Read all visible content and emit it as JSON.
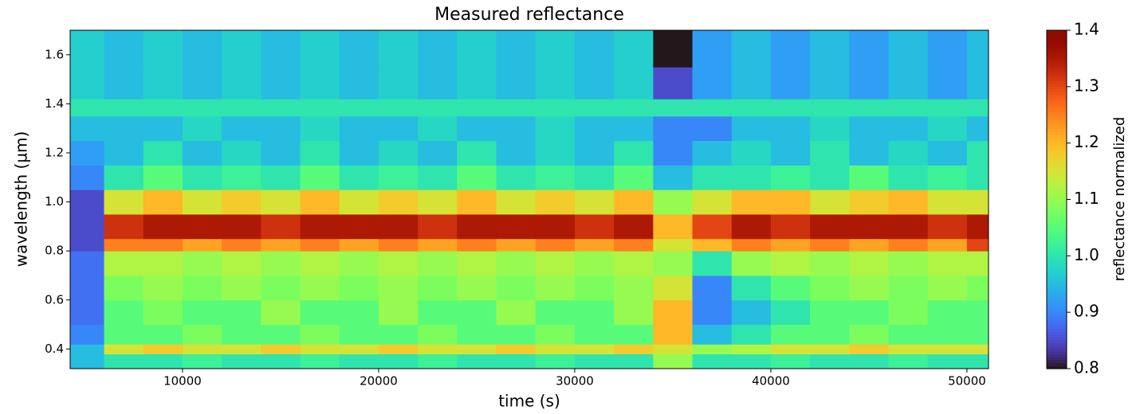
{
  "chart_data": {
    "type": "heatmap",
    "title": "Measured reflectance",
    "x_label": "time (s)",
    "y_label": "wavelength (µm)",
    "colorbar_label": "reflectance normalized",
    "colormap": "turbo",
    "xlim": [
      4270,
      51100
    ],
    "ylim": [
      0.32,
      1.7
    ],
    "xticks": [
      10000,
      20000,
      30000,
      40000,
      50000
    ],
    "yticks": [
      0.4,
      0.6,
      0.8,
      {
        "value": 1,
        "label": "1.0"
      },
      1.2,
      1.4,
      1.6
    ],
    "clim": [
      0.8,
      1.4
    ],
    "cticks": [
      0.8,
      0.9,
      {
        "value": 1,
        "label": "1.0"
      },
      1.1,
      1.2,
      1.3,
      1.4
    ],
    "x_bins": [
      4270,
      6000,
      8000,
      10000,
      12000,
      14000,
      16000,
      18000,
      20000,
      22000,
      24000,
      26000,
      28000,
      30000,
      32000,
      34000,
      36000,
      38000,
      40000,
      42000,
      44000,
      46000,
      48000,
      50000,
      51100
    ],
    "y_bins": [
      0.32,
      0.38,
      0.42,
      0.5,
      0.6,
      0.7,
      0.8,
      0.85,
      0.95,
      1.05,
      1.15,
      1.25,
      1.35,
      1.42,
      1.55,
      1.7
    ],
    "values": [
      [
        0.95,
        1.0,
        1.0,
        1.02,
        1.0,
        1.0,
        1.02,
        1.0,
        1.0,
        1.02,
        1.0,
        1.0,
        1.02,
        1.0,
        1.0,
        1.1,
        1.0,
        1.0,
        1.02,
        1.0,
        1.0,
        1.02,
        1.0,
        1.0
      ],
      [
        0.95,
        1.15,
        1.18,
        1.15,
        1.15,
        1.18,
        1.15,
        1.15,
        1.18,
        1.15,
        1.15,
        1.18,
        1.15,
        1.15,
        1.18,
        1.15,
        1.1,
        1.12,
        1.15,
        1.15,
        1.18,
        1.15,
        1.15,
        1.15
      ],
      [
        0.9,
        1.05,
        1.05,
        1.08,
        1.05,
        1.05,
        1.08,
        1.05,
        1.05,
        1.08,
        1.05,
        1.05,
        1.08,
        1.05,
        1.05,
        1.2,
        0.95,
        1.0,
        1.05,
        1.05,
        1.08,
        1.05,
        1.05,
        1.05
      ],
      [
        0.88,
        1.05,
        1.08,
        1.05,
        1.05,
        1.1,
        1.05,
        1.05,
        1.1,
        1.05,
        1.05,
        1.1,
        1.05,
        1.05,
        1.1,
        1.2,
        0.9,
        0.95,
        1.0,
        1.05,
        1.05,
        1.08,
        1.05,
        1.05
      ],
      [
        0.88,
        1.08,
        1.1,
        1.08,
        1.1,
        1.08,
        1.1,
        1.08,
        1.1,
        1.08,
        1.1,
        1.08,
        1.1,
        1.08,
        1.1,
        1.15,
        0.9,
        1.0,
        1.05,
        1.08,
        1.1,
        1.08,
        1.1,
        1.08
      ],
      [
        0.88,
        1.12,
        1.12,
        1.1,
        1.12,
        1.1,
        1.12,
        1.1,
        1.12,
        1.1,
        1.12,
        1.1,
        1.12,
        1.1,
        1.12,
        1.1,
        1.0,
        1.1,
        1.12,
        1.1,
        1.12,
        1.1,
        1.12,
        1.12
      ],
      [
        0.85,
        1.25,
        1.25,
        1.22,
        1.25,
        1.22,
        1.25,
        1.22,
        1.25,
        1.22,
        1.25,
        1.22,
        1.25,
        1.22,
        1.25,
        1.15,
        1.2,
        1.25,
        1.22,
        1.25,
        1.22,
        1.25,
        1.22,
        1.3
      ],
      [
        0.85,
        1.32,
        1.35,
        1.35,
        1.35,
        1.32,
        1.35,
        1.35,
        1.35,
        1.32,
        1.35,
        1.35,
        1.35,
        1.32,
        1.35,
        1.2,
        1.3,
        1.35,
        1.32,
        1.35,
        1.35,
        1.35,
        1.32,
        1.35
      ],
      [
        0.85,
        1.15,
        1.2,
        1.15,
        1.18,
        1.15,
        1.2,
        1.15,
        1.18,
        1.15,
        1.2,
        1.15,
        1.18,
        1.15,
        1.2,
        1.1,
        1.15,
        1.2,
        1.2,
        1.15,
        1.18,
        1.2,
        1.15,
        1.15
      ],
      [
        0.9,
        1.0,
        1.05,
        1.0,
        1.02,
        1.0,
        1.05,
        1.0,
        1.02,
        1.0,
        1.05,
        1.0,
        1.02,
        1.0,
        1.05,
        0.95,
        1.0,
        1.0,
        1.02,
        1.0,
        1.05,
        1.0,
        1.02,
        1.0
      ],
      [
        0.92,
        0.95,
        1.0,
        0.95,
        0.98,
        0.95,
        1.0,
        0.95,
        0.98,
        0.95,
        1.0,
        0.95,
        0.98,
        0.95,
        1.0,
        0.9,
        0.95,
        0.98,
        0.95,
        1.0,
        0.95,
        0.98,
        0.95,
        1.0
      ],
      [
        0.95,
        0.95,
        0.95,
        0.98,
        0.95,
        0.95,
        0.98,
        0.95,
        0.95,
        0.98,
        0.95,
        0.95,
        0.98,
        0.95,
        0.95,
        0.9,
        0.9,
        0.95,
        0.95,
        0.98,
        0.95,
        0.95,
        0.98,
        0.95
      ],
      [
        1.0,
        1.0,
        1.0,
        1.0,
        1.0,
        1.0,
        1.0,
        1.0,
        1.0,
        1.0,
        1.0,
        1.0,
        1.0,
        1.0,
        1.0,
        1.0,
        1.0,
        1.0,
        1.0,
        1.0,
        1.0,
        1.0,
        1.0,
        1.0
      ],
      [
        0.97,
        0.95,
        0.97,
        0.95,
        0.97,
        0.95,
        0.97,
        0.95,
        0.97,
        0.95,
        0.97,
        0.95,
        0.97,
        0.95,
        0.97,
        0.85,
        0.92,
        0.95,
        0.92,
        0.95,
        0.92,
        0.95,
        0.92,
        0.95
      ],
      [
        0.97,
        0.95,
        0.97,
        0.95,
        0.97,
        0.95,
        0.97,
        0.95,
        0.97,
        0.95,
        0.97,
        0.95,
        0.97,
        0.95,
        0.97,
        0.8,
        0.92,
        0.95,
        0.92,
        0.95,
        0.92,
        0.95,
        0.92,
        0.95
      ]
    ]
  }
}
